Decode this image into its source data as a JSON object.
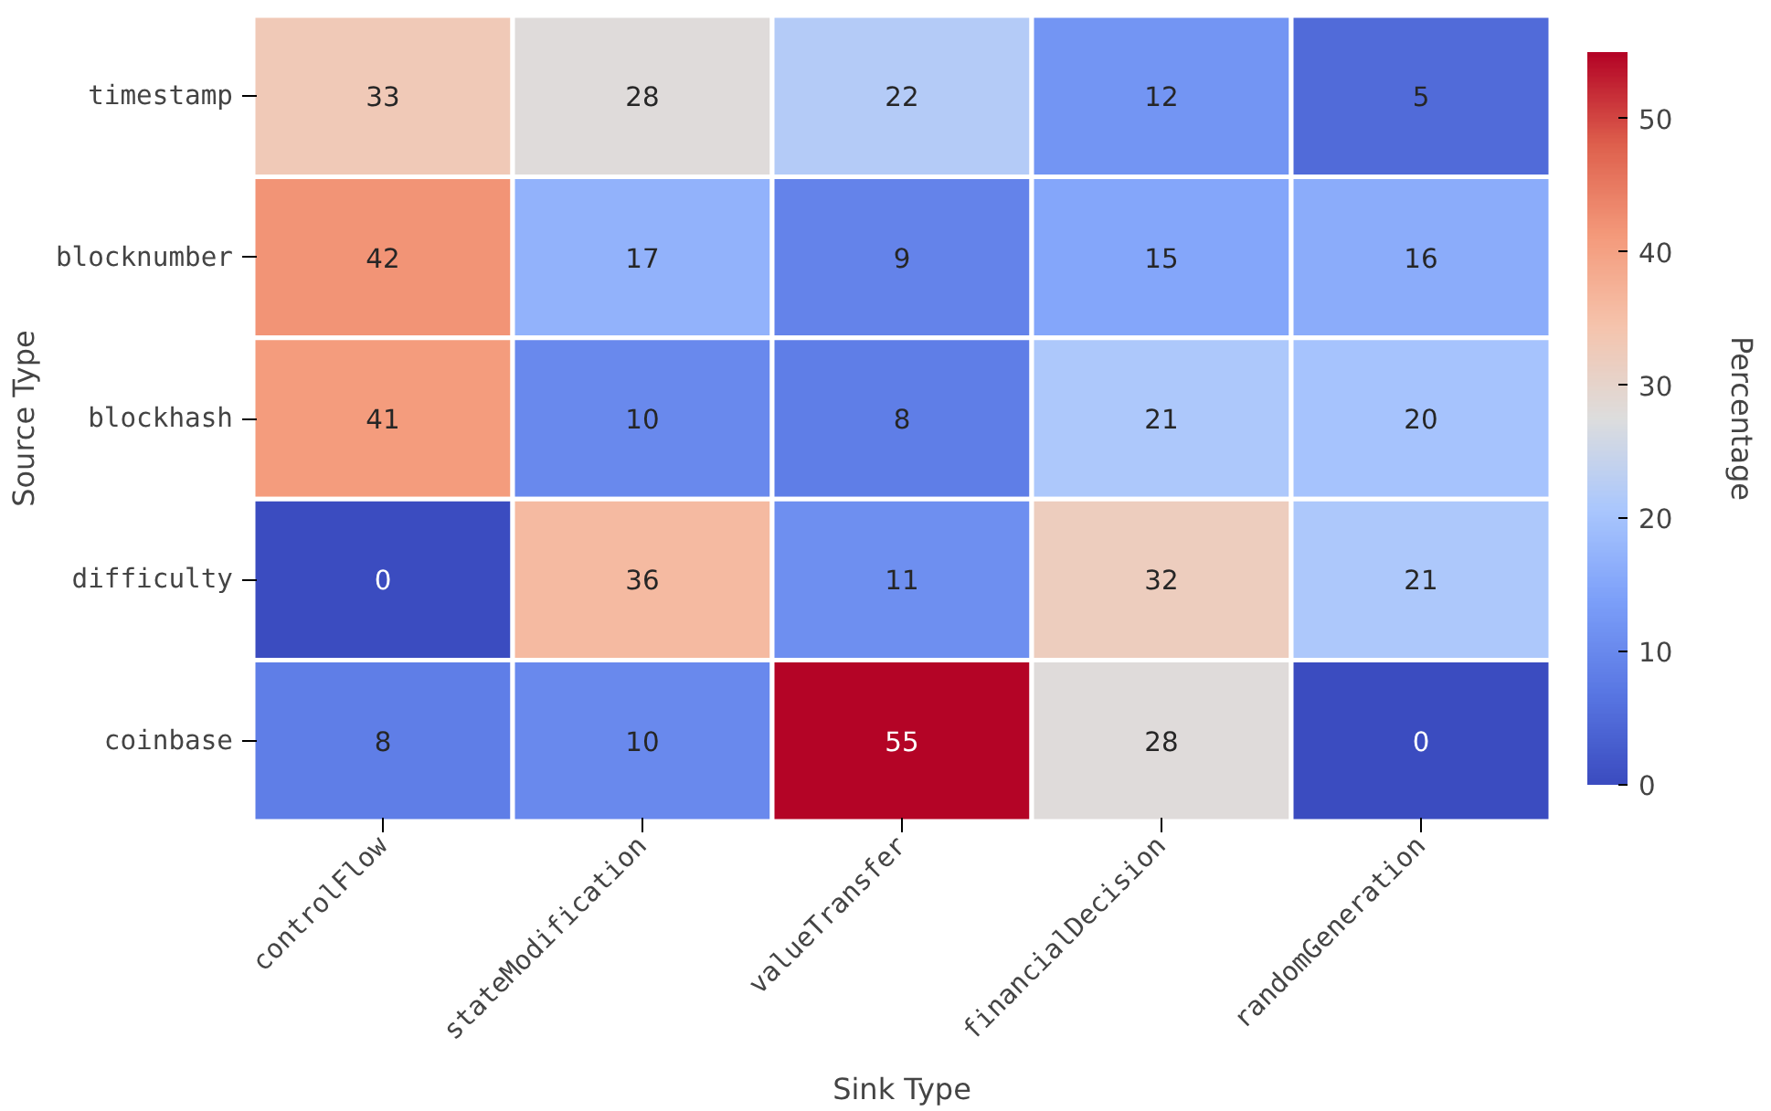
{
  "chart_data": {
    "type": "heatmap",
    "xlabel": "Sink Type",
    "ylabel": "Source Type",
    "clabel": "Percentage",
    "categories": [
      "controlFlow",
      "stateModification",
      "valueTransfer",
      "financialDecision",
      "randomGeneration"
    ],
    "y_categories": [
      "timestamp",
      "blocknumber",
      "blockhash",
      "difficulty",
      "coinbase"
    ],
    "cells": [
      [
        33,
        28,
        22,
        12,
        5
      ],
      [
        42,
        17,
        9,
        15,
        16
      ],
      [
        41,
        10,
        8,
        21,
        20
      ],
      [
        0,
        36,
        11,
        32,
        21
      ],
      [
        8,
        10,
        55,
        28,
        0
      ]
    ],
    "clim": [
      0,
      55
    ],
    "cticks": [
      0,
      10,
      20,
      30,
      40,
      50
    ],
    "data_labels": true
  }
}
